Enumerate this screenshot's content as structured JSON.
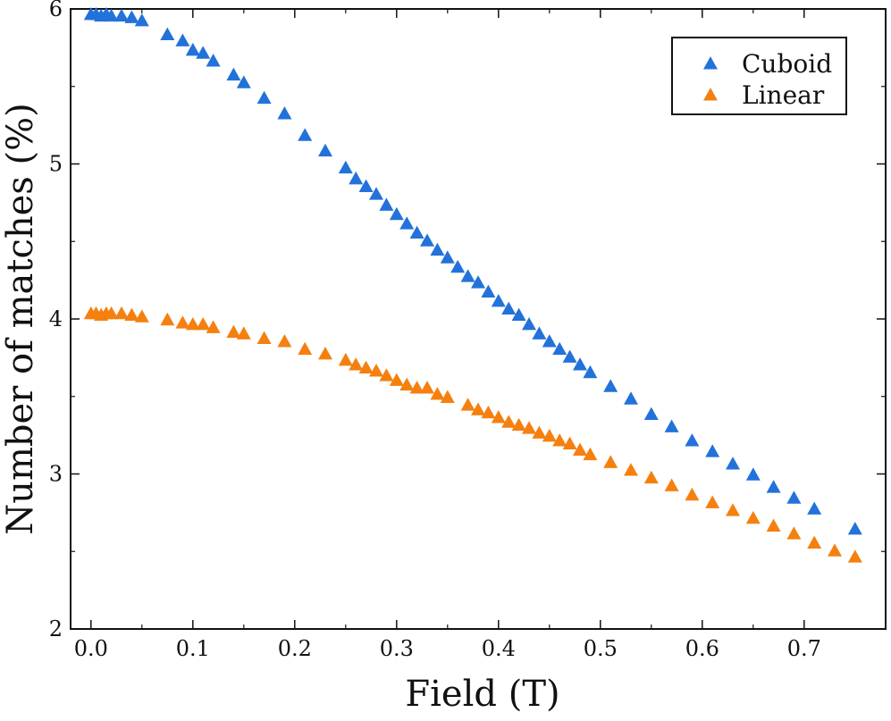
{
  "chart_data": {
    "type": "scatter",
    "title": "",
    "xlabel": "Field (T)",
    "ylabel": "Number of matches (%)",
    "xlim": [
      -0.02,
      0.78
    ],
    "ylim": [
      2,
      6
    ],
    "xticks": [
      0.0,
      0.1,
      0.2,
      0.3,
      0.4,
      0.5,
      0.6,
      0.7
    ],
    "xtick_labels": [
      "0.0",
      "0.1",
      "0.2",
      "0.3",
      "0.4",
      "0.5",
      "0.6",
      "0.7"
    ],
    "yticks": [
      2,
      3,
      4,
      5,
      6
    ],
    "ytick_labels": [
      "2",
      "3",
      "4",
      "5",
      "6"
    ],
    "grid": false,
    "legend_position": "top-right",
    "marker": "triangle",
    "series": [
      {
        "name": "Cuboid",
        "color": "#2272d9",
        "x": [
          0.0,
          0.005,
          0.01,
          0.015,
          0.02,
          0.03,
          0.04,
          0.05,
          0.075,
          0.09,
          0.1,
          0.11,
          0.12,
          0.14,
          0.15,
          0.17,
          0.19,
          0.21,
          0.23,
          0.25,
          0.26,
          0.27,
          0.28,
          0.29,
          0.3,
          0.31,
          0.32,
          0.33,
          0.34,
          0.35,
          0.36,
          0.37,
          0.38,
          0.39,
          0.4,
          0.41,
          0.42,
          0.43,
          0.44,
          0.45,
          0.46,
          0.47,
          0.48,
          0.49,
          0.51,
          0.53,
          0.55,
          0.57,
          0.59,
          0.61,
          0.63,
          0.65,
          0.67,
          0.69,
          0.71,
          0.75
        ],
        "values": [
          5.96,
          5.96,
          5.95,
          5.96,
          5.95,
          5.95,
          5.94,
          5.92,
          5.83,
          5.79,
          5.73,
          5.71,
          5.66,
          5.57,
          5.52,
          5.42,
          5.32,
          5.18,
          5.08,
          4.97,
          4.9,
          4.85,
          4.8,
          4.73,
          4.67,
          4.61,
          4.55,
          4.5,
          4.44,
          4.39,
          4.33,
          4.27,
          4.23,
          4.17,
          4.11,
          4.06,
          4.02,
          3.96,
          3.9,
          3.85,
          3.8,
          3.75,
          3.7,
          3.65,
          3.56,
          3.48,
          3.38,
          3.3,
          3.21,
          3.14,
          3.06,
          2.99,
          2.91,
          2.84,
          2.77,
          2.64
        ]
      },
      {
        "name": "Linear",
        "color": "#f5800f",
        "x": [
          0.0,
          0.005,
          0.01,
          0.015,
          0.02,
          0.03,
          0.04,
          0.05,
          0.075,
          0.09,
          0.1,
          0.11,
          0.12,
          0.14,
          0.15,
          0.17,
          0.19,
          0.21,
          0.23,
          0.25,
          0.26,
          0.27,
          0.28,
          0.29,
          0.3,
          0.31,
          0.32,
          0.33,
          0.34,
          0.35,
          0.37,
          0.38,
          0.39,
          0.4,
          0.41,
          0.42,
          0.43,
          0.44,
          0.45,
          0.46,
          0.47,
          0.48,
          0.49,
          0.51,
          0.53,
          0.55,
          0.57,
          0.59,
          0.61,
          0.63,
          0.65,
          0.67,
          0.69,
          0.71,
          0.73,
          0.75
        ],
        "values": [
          4.03,
          4.03,
          4.02,
          4.03,
          4.03,
          4.03,
          4.02,
          4.01,
          3.99,
          3.97,
          3.96,
          3.96,
          3.94,
          3.91,
          3.9,
          3.87,
          3.85,
          3.8,
          3.77,
          3.73,
          3.7,
          3.68,
          3.66,
          3.63,
          3.6,
          3.57,
          3.55,
          3.55,
          3.51,
          3.49,
          3.44,
          3.41,
          3.39,
          3.36,
          3.33,
          3.31,
          3.29,
          3.26,
          3.24,
          3.21,
          3.19,
          3.15,
          3.12,
          3.07,
          3.02,
          2.97,
          2.92,
          2.86,
          2.81,
          2.76,
          2.71,
          2.66,
          2.61,
          2.55,
          2.5,
          2.46
        ]
      }
    ]
  }
}
